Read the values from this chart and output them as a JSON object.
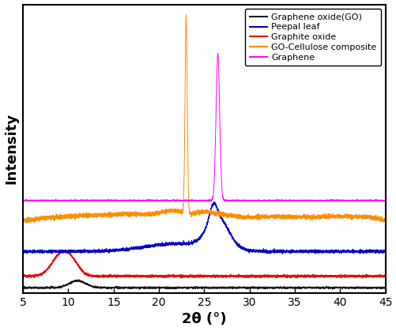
{
  "title": "",
  "xlabel": "2θ (°)",
  "ylabel": "Intensity",
  "xlim": [
    5,
    45
  ],
  "ylim": [
    -0.02,
    1.85
  ],
  "legend_labels": [
    "Graphene oxide(GO)",
    "Peepal leaf",
    "Graphite oxide",
    "GO-Cellulose composite",
    "Graphene"
  ],
  "legend_colors": [
    "#1a1a1a",
    "#0000cd",
    "#dd1111",
    "#ff8c00",
    "#ff00ff"
  ],
  "background_color": "#ffffff",
  "xlabel_fontsize": 13,
  "ylabel_fontsize": 13,
  "tick_fontsize": 10,
  "xticks": [
    5,
    10,
    15,
    20,
    25,
    30,
    35,
    40,
    45
  ]
}
